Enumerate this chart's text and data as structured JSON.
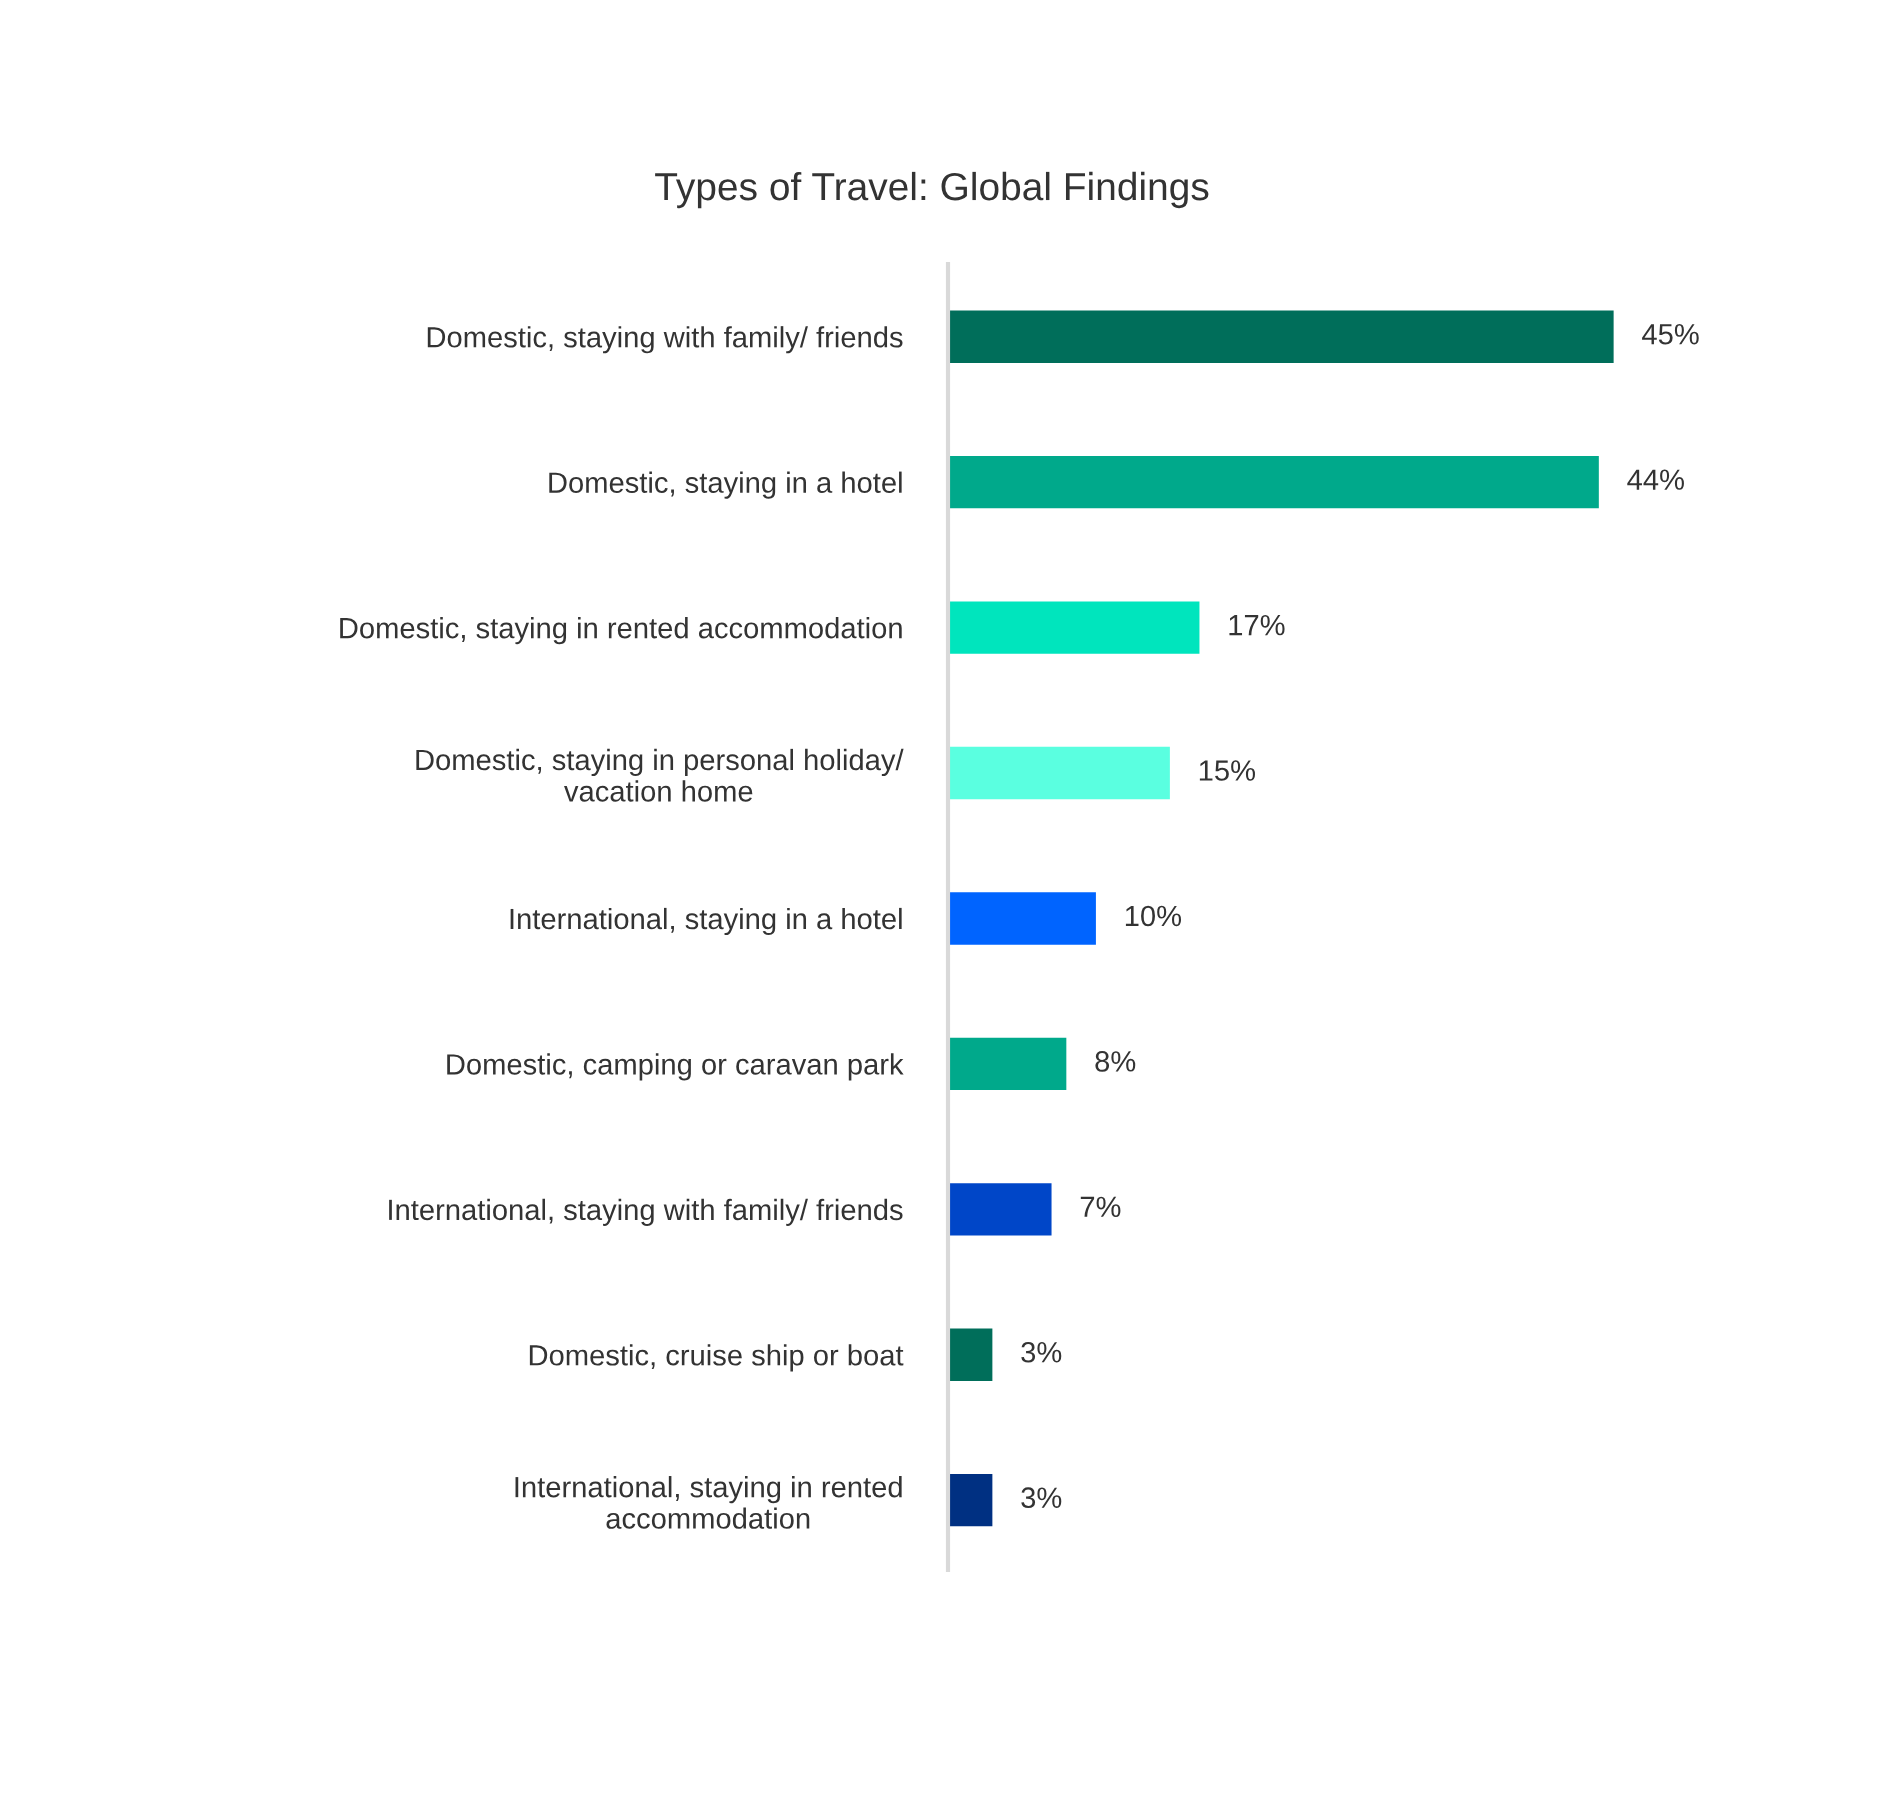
{
  "chart_data": {
    "type": "bar",
    "orientation": "horizontal",
    "title": "Types of Travel: Global Findings",
    "categories": [
      "Domestic, staying with family/ friends",
      "Domestic, staying in a hotel",
      "Domestic, staying in rented accommodation",
      "Domestic, staying in personal holiday/\nvacation home",
      "International, staying in a hotel",
      "Domestic, camping or caravan park",
      "International, staying with family/ friends",
      "Domestic, cruise ship or boat",
      "International, staying in rented\naccommodation"
    ],
    "values": [
      45,
      44,
      17,
      15,
      10,
      8,
      7,
      3,
      3
    ],
    "colors": [
      "#006e5a",
      "#00a98b",
      "#00e5bd",
      "#5affe0",
      "#0064ff",
      "#00a98b",
      "#0046c8",
      "#006e5a",
      "#003082"
    ],
    "value_labels": [
      "45%",
      "44%",
      "17%",
      "15%",
      "10%",
      "8%",
      "7%",
      "3%",
      "3%"
    ],
    "grid": false,
    "legend": false
  }
}
